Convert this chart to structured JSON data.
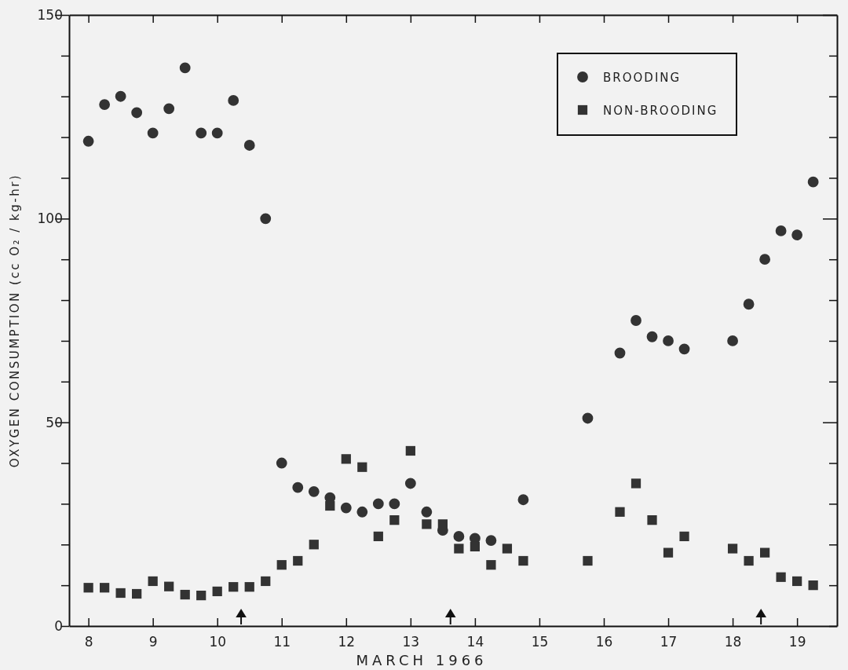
{
  "chart_data": {
    "type": "scatter",
    "xlabel": "MARCH 1966",
    "ylabel": "OXYGEN CONSUMPTION  (cc O₂ / kg-hr)",
    "xlim": [
      7.7,
      19.62
    ],
    "ylim": [
      0,
      150
    ],
    "xticks": [
      8,
      9,
      10,
      11,
      12,
      13,
      14,
      15,
      16,
      17,
      18,
      19
    ],
    "yticks": [
      0,
      {
        "value": 10,
        "label": null
      },
      {
        "value": 20,
        "label": null
      },
      {
        "value": 30,
        "label": null
      },
      {
        "value": 40,
        "label": null
      },
      50,
      {
        "value": 60,
        "label": null
      },
      {
        "value": 70,
        "label": null
      },
      {
        "value": 80,
        "label": null
      },
      {
        "value": 90,
        "label": null
      },
      100,
      {
        "value": 110,
        "label": null
      },
      {
        "value": 120,
        "label": null
      },
      {
        "value": 130,
        "label": null
      },
      {
        "value": 140,
        "label": null
      },
      150
    ],
    "grid": false,
    "legend": "top right",
    "series": [
      {
        "name": "BROODING",
        "color": "#333333",
        "marker": "circle",
        "x": [
          8,
          8.25,
          8.5,
          8.75,
          9,
          9.25,
          9.5,
          9.75,
          10,
          10.25,
          10.5,
          10.75,
          11,
          11.25,
          11.5,
          11.75,
          12,
          12.25,
          12.5,
          12.75,
          13,
          13.25,
          13.5,
          13.75,
          14,
          14.25,
          14.75,
          15.75,
          16.25,
          16.5,
          16.75,
          17,
          17.25,
          18,
          18.25,
          18.5,
          18.75,
          19,
          19.25
        ],
        "values": [
          119,
          128,
          130,
          126,
          121,
          127,
          137,
          121,
          121,
          129,
          118,
          100,
          40,
          34,
          33,
          31.5,
          29,
          28,
          30,
          30,
          35,
          28,
          23.5,
          22,
          21.5,
          21,
          31,
          51,
          67,
          75,
          71,
          70,
          68,
          70,
          79,
          90,
          97,
          96,
          109
        ]
      },
      {
        "name": "NON-BROODING",
        "color": "#333333",
        "marker": "square",
        "x": [
          8,
          8.25,
          8.5,
          8.75,
          9,
          9.25,
          9.5,
          9.75,
          10,
          10.25,
          10.5,
          10.75,
          11,
          11.25,
          11.5,
          11.75,
          12,
          12.25,
          12.5,
          12.75,
          13,
          13.25,
          13.5,
          13.75,
          14,
          14.25,
          14.5,
          14.75,
          15.75,
          16.25,
          16.5,
          16.75,
          17,
          17.25,
          18,
          18.25,
          18.5,
          18.75,
          19,
          19.25
        ],
        "values": [
          9.4,
          9.4,
          8.1,
          7.9,
          11,
          9.7,
          7.7,
          7.5,
          8.5,
          9.6,
          9.6,
          11,
          15,
          16,
          20,
          29.5,
          41,
          39,
          22,
          26,
          43,
          25,
          25,
          19,
          19.5,
          15,
          19,
          16,
          16,
          28,
          35,
          26,
          18,
          22,
          19,
          16,
          18,
          12,
          11,
          10
        ]
      }
    ]
  }
}
